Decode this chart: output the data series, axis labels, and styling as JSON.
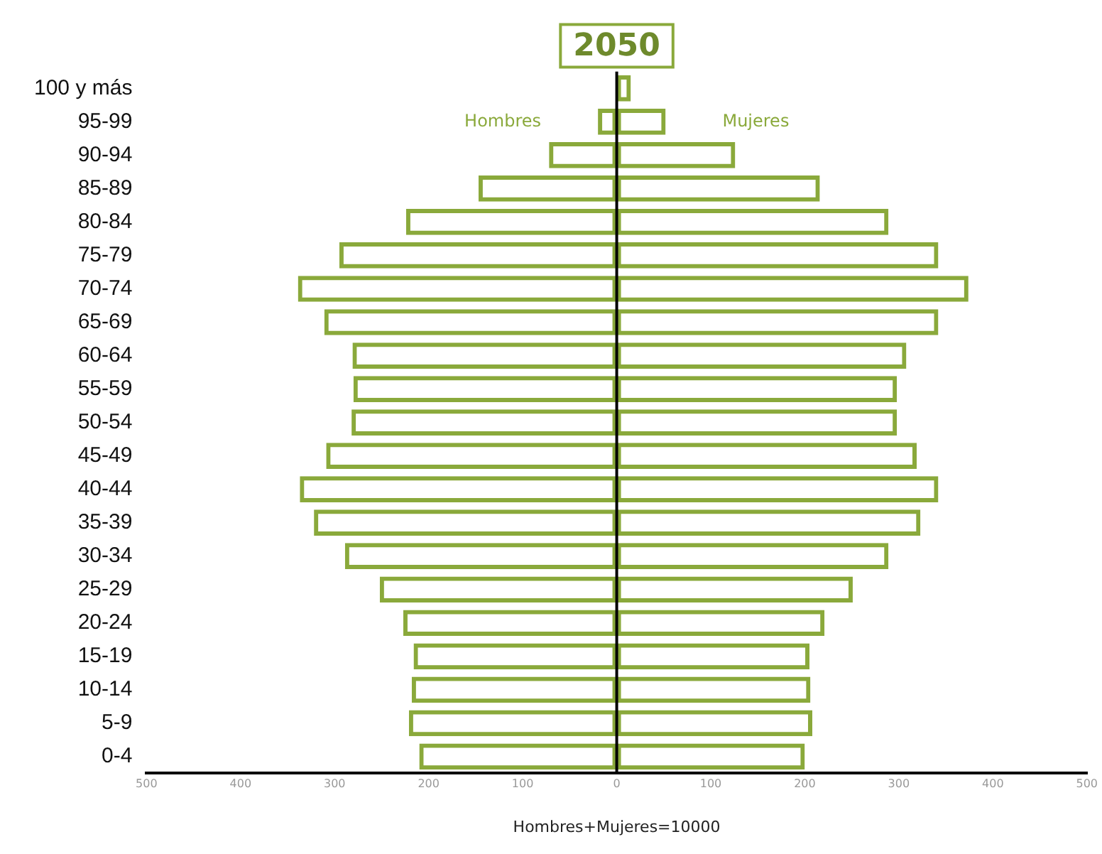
{
  "chart_data": {
    "type": "bar",
    "orientation": "horizontal",
    "stacked": true,
    "title": "2050",
    "xlabel": "Hombres+Mujeres=10000",
    "categories": [
      "100 y más",
      "95-99",
      "90-94",
      "85-89",
      "80-84",
      "75-79",
      "70-74",
      "65-69",
      "60-64",
      "55-59",
      "50-54",
      "45-49",
      "40-44",
      "35-39",
      "30-34",
      "25-29",
      "20-24",
      "15-19",
      "10-14",
      "5-9",
      "0-4"
    ],
    "series": [
      {
        "name": "Hombres",
        "color": "#8aa93b",
        "values": [
          null,
          -20,
          -72,
          -147,
          -224,
          -295,
          -339,
          -311,
          -281,
          -280,
          -282,
          -309,
          -337,
          -322,
          -289,
          -252,
          -227,
          -216,
          -218,
          -221,
          -210
        ]
      },
      {
        "name": "Mujeres",
        "color": "#8aa93b",
        "values": [
          15,
          52,
          126,
          216,
          289,
          342,
          374,
          342,
          308,
          298,
          298,
          319,
          342,
          323,
          289,
          251,
          221,
          205,
          206,
          208,
          200
        ]
      }
    ],
    "xlim": [
      -500,
      500
    ],
    "xticks": [
      {
        "value": -500,
        "label": "500"
      },
      {
        "value": -400,
        "label": "400"
      },
      {
        "value": -300,
        "label": "300"
      },
      {
        "value": -200,
        "label": "200"
      },
      {
        "value": -100,
        "label": "100"
      },
      0,
      100,
      200,
      300,
      400,
      500
    ],
    "ref_lines": [
      {
        "axis": "x",
        "value": 0,
        "color": "#000000"
      }
    ],
    "grid": false,
    "legend": "top"
  }
}
